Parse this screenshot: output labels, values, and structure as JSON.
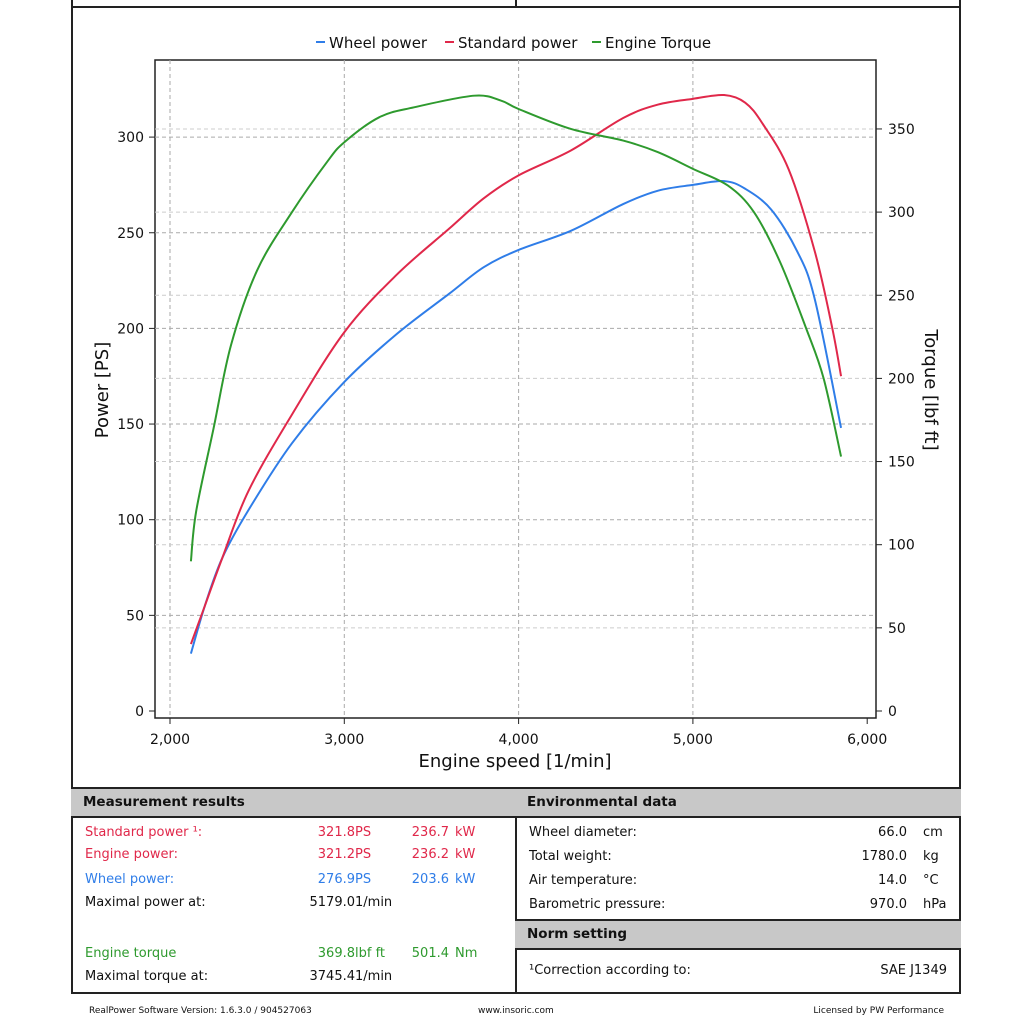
{
  "chart_data": {
    "type": "line",
    "legend": [
      "Wheel power",
      "Standard power",
      "Engine Torque"
    ],
    "legend_position": "top",
    "xlabel": "Engine speed [1/min]",
    "ylabel": "Power [PS]",
    "y2label": "Torque [lbf ft]",
    "xlim": [
      1900,
      6050
    ],
    "ylim": [
      0,
      340
    ],
    "y2lim": [
      0,
      395
    ],
    "xticks": [
      "2,000",
      "3,000",
      "4,000",
      "5,000",
      "6,000"
    ],
    "yticks": [
      "0",
      "50",
      "100",
      "150",
      "200",
      "250",
      "300"
    ],
    "y2ticks": [
      "0",
      "50",
      "100",
      "150",
      "200",
      "250",
      "300",
      "350"
    ],
    "grid": true,
    "colors": {
      "wheel": "#2f7de8",
      "standard": "#e0284a",
      "torque": "#2e9a2e"
    },
    "series": [
      {
        "name": "Wheel power",
        "axis": "left",
        "x": [
          2120,
          2200,
          2300,
          2450,
          2700,
          3000,
          3300,
          3600,
          3800,
          4000,
          4300,
          4600,
          4800,
          5000,
          5179,
          5300,
          5450,
          5600,
          5700,
          5850
        ],
        "y": [
          30,
          55,
          80,
          105,
          140,
          172,
          197,
          218,
          232,
          241,
          251,
          265,
          272,
          275,
          277,
          273,
          262,
          240,
          215,
          148
        ]
      },
      {
        "name": "Standard power",
        "axis": "left",
        "x": [
          2120,
          2200,
          2300,
          2450,
          2700,
          3000,
          3300,
          3600,
          3800,
          4000,
          4300,
          4600,
          4800,
          5000,
          5179,
          5300,
          5400,
          5550,
          5700,
          5800,
          5850
        ],
        "y": [
          35,
          55,
          80,
          115,
          155,
          198,
          228,
          252,
          268,
          280,
          293,
          310,
          317,
          320,
          322,
          318,
          307,
          283,
          240,
          200,
          175
        ]
      },
      {
        "name": "Engine Torque",
        "axis": "right",
        "x": [
          2120,
          2150,
          2250,
          2350,
          2500,
          2700,
          2900,
          3000,
          3200,
          3400,
          3745,
          3900,
          4000,
          4300,
          4600,
          4800,
          5000,
          5200,
          5350,
          5500,
          5650,
          5750,
          5850
        ],
        "y": [
          90,
          120,
          170,
          220,
          265,
          300,
          330,
          342,
          357,
          363,
          370,
          367,
          362,
          350,
          343,
          336,
          326,
          316,
          300,
          270,
          230,
          200,
          153
        ]
      }
    ]
  },
  "measurement": {
    "title": "Measurement results",
    "rows": [
      {
        "label": "Standard power ¹:",
        "v1": "321.8",
        "u1": "PS",
        "v2": "236.7",
        "u2": "kW",
        "color": "#e0284a"
      },
      {
        "label": "Engine power:",
        "v1": "321.2",
        "u1": "PS",
        "v2": "236.2",
        "u2": "kW",
        "color": "#e0284a"
      },
      {
        "label": "Wheel power:",
        "v1": "276.9",
        "u1": "PS",
        "v2": "203.6",
        "u2": "kW",
        "color": "#2f7de8"
      },
      {
        "label": "Maximal power at:",
        "v1": "5179.0",
        "u1": "1/min",
        "v2": "",
        "u2": "",
        "color": "#111"
      },
      {
        "label": "Engine torque",
        "v1": "369.8",
        "u1": "lbf ft",
        "v2": "501.4",
        "u2": "Nm",
        "color": "#2e9a2e"
      },
      {
        "label": "Maximal torque at:",
        "v1": "3745.4",
        "u1": "1/min",
        "v2": "",
        "u2": "",
        "color": "#111"
      }
    ]
  },
  "environment": {
    "title": "Environmental data",
    "rows": [
      {
        "label": "Wheel diameter:",
        "v": "66.0",
        "u": "cm"
      },
      {
        "label": "Total weight:",
        "v": "1780.0",
        "u": "kg"
      },
      {
        "label": "Air temperature:",
        "v": "14.0",
        "u": "°C"
      },
      {
        "label": "Barometric pressure:",
        "v": "970.0",
        "u": "hPa"
      }
    ]
  },
  "norm": {
    "title": "Norm setting",
    "label": "¹Correction according to:",
    "value": "SAE J1349"
  },
  "footer": {
    "version": "RealPower Software Version: 1.6.3.0 / 904527063",
    "url": "www.insoric.com",
    "license": "Licensed by PW Performance"
  }
}
